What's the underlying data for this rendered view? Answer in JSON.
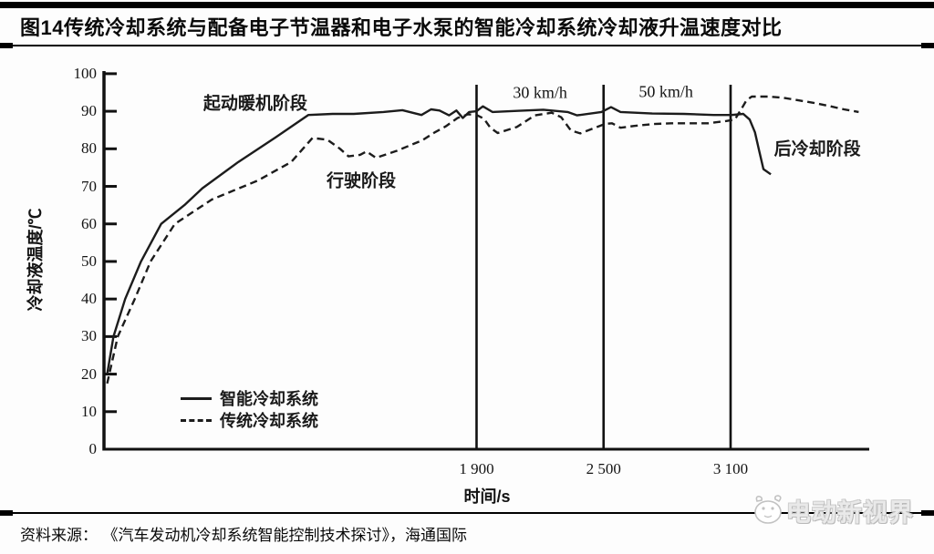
{
  "header": {
    "title": "图14传统冷却系统与配备电子节温器和电子水泵的智能冷却系统冷却液升温速度对比"
  },
  "footer": {
    "source_label": "资料来源：",
    "source_text": "《汽车发动机冷却系统智能控制技术探讨》，海通国际"
  },
  "watermark": {
    "text": "电动新视界",
    "icon": "mascot-face-icon",
    "color": "#c9c9c9"
  },
  "colors": {
    "line": "#1c1c1c",
    "axis": "#111111",
    "divider": "#000000",
    "background": "#ffffff"
  },
  "chart_data": {
    "type": "line",
    "title": "图14传统冷却系统与配备电子节温器和电子水泵的智能冷却系统冷却液升温速度对比",
    "xlabel": "时间/s",
    "ylabel": "冷却液温度/℃",
    "xlim": [
      140,
      3755
    ],
    "ylim": [
      0,
      100.7
    ],
    "grid": false,
    "x_ticks": [
      {
        "value": 1900,
        "label": "1 900"
      },
      {
        "value": 2500,
        "label": "2 500"
      },
      {
        "value": 3100,
        "label": "3 100"
      }
    ],
    "y_ticks": [
      0,
      10,
      20,
      30,
      40,
      50,
      60,
      70,
      80,
      90,
      100
    ],
    "vlines": [
      1900,
      2500,
      3100
    ],
    "legend": {
      "position": "lower-left",
      "entries": [
        {
          "name": "智能冷却系统",
          "line_style": "solid"
        },
        {
          "name": "传统冷却系统",
          "line_style": "dashed"
        }
      ]
    },
    "series": [
      {
        "name": "智能冷却系统",
        "style": "solid",
        "points": [
          [
            155,
            20
          ],
          [
            185,
            30
          ],
          [
            240,
            40
          ],
          [
            315,
            50
          ],
          [
            410,
            60
          ],
          [
            520,
            65
          ],
          [
            605,
            69.5
          ],
          [
            775,
            76.5
          ],
          [
            950,
            83
          ],
          [
            1105,
            89
          ],
          [
            1220,
            89.3
          ],
          [
            1320,
            89.3
          ],
          [
            1460,
            89.8
          ],
          [
            1550,
            90.3
          ],
          [
            1640,
            89
          ],
          [
            1685,
            90.5
          ],
          [
            1725,
            90.2
          ],
          [
            1770,
            88.9
          ],
          [
            1805,
            90.2
          ],
          [
            1835,
            88.2
          ],
          [
            1865,
            89.8
          ],
          [
            1900,
            90
          ],
          [
            1930,
            91.3
          ],
          [
            1975,
            89.8
          ],
          [
            2090,
            90.1
          ],
          [
            2215,
            90.4
          ],
          [
            2330,
            89.8
          ],
          [
            2375,
            88.9
          ],
          [
            2490,
            89.8
          ],
          [
            2535,
            91.1
          ],
          [
            2580,
            89.8
          ],
          [
            2730,
            89.4
          ],
          [
            2880,
            89.3
          ],
          [
            3020,
            89
          ],
          [
            3105,
            89
          ],
          [
            3160,
            89.3
          ],
          [
            3190,
            87.8
          ],
          [
            3215,
            84.4
          ],
          [
            3235,
            79.5
          ],
          [
            3255,
            74.6
          ],
          [
            3290,
            73.2
          ]
        ]
      },
      {
        "name": "传统冷却系统",
        "style": "dashed",
        "points": [
          [
            155,
            17.5
          ],
          [
            205,
            30
          ],
          [
            285,
            40
          ],
          [
            360,
            50
          ],
          [
            475,
            60
          ],
          [
            650,
            66.5
          ],
          [
            865,
            71.5
          ],
          [
            1025,
            76.5
          ],
          [
            1125,
            82.9
          ],
          [
            1195,
            82.4
          ],
          [
            1255,
            80
          ],
          [
            1295,
            78
          ],
          [
            1350,
            78.4
          ],
          [
            1380,
            79.3
          ],
          [
            1425,
            77.6
          ],
          [
            1525,
            79.5
          ],
          [
            1645,
            82.3
          ],
          [
            1700,
            84.3
          ],
          [
            1755,
            86
          ],
          [
            1810,
            88.2
          ],
          [
            1860,
            89.2
          ],
          [
            1900,
            89
          ],
          [
            1935,
            88
          ],
          [
            1965,
            85.6
          ],
          [
            2000,
            84.2
          ],
          [
            2090,
            85.8
          ],
          [
            2175,
            88.9
          ],
          [
            2255,
            89.6
          ],
          [
            2300,
            88.4
          ],
          [
            2345,
            84.9
          ],
          [
            2390,
            84.1
          ],
          [
            2450,
            85.4
          ],
          [
            2505,
            86.6
          ],
          [
            2540,
            86.8
          ],
          [
            2580,
            85.6
          ],
          [
            2645,
            86.1
          ],
          [
            2735,
            86.6
          ],
          [
            2820,
            86.8
          ],
          [
            2995,
            86.8
          ],
          [
            3080,
            87.4
          ],
          [
            3120,
            87.8
          ],
          [
            3150,
            90.5
          ],
          [
            3175,
            92.9
          ],
          [
            3200,
            93.9
          ],
          [
            3280,
            93.9
          ],
          [
            3350,
            93.6
          ],
          [
            3420,
            92.9
          ],
          [
            3495,
            92.2
          ],
          [
            3565,
            91.4
          ],
          [
            3635,
            90.5
          ],
          [
            3705,
            89.8
          ]
        ]
      }
    ],
    "annotations": [
      {
        "text": "起动暖机阶段",
        "t": 855,
        "temp": 92.5,
        "kind": "cn"
      },
      {
        "text": "行驶阶段",
        "t": 1355,
        "temp": 71.8,
        "kind": "cn"
      },
      {
        "text": "30 km/h",
        "t": 2200,
        "temp": 94.9,
        "kind": "speed"
      },
      {
        "text": "50 km/h",
        "t": 2795,
        "temp": 95.1,
        "kind": "speed"
      },
      {
        "text": "后冷却阶段",
        "t": 3510,
        "temp": 80.3,
        "kind": "cn"
      }
    ]
  }
}
